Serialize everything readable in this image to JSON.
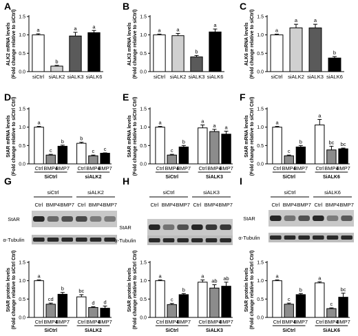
{
  "chart_data": [
    {
      "id": "A",
      "type": "bar",
      "title": "",
      "xlabel": "",
      "ylabel": [
        "ALK2 mRNA levels",
        "(Fold change relative to siCtrl)"
      ],
      "categories": [
        "siCtrl",
        "siALK2",
        "siALK3",
        "siALK6"
      ],
      "values": [
        1.0,
        0.15,
        0.97,
        1.06
      ],
      "errors": [
        0.03,
        0.02,
        0.1,
        0.06
      ],
      "sig": [
        "a",
        "b",
        "a",
        "a"
      ],
      "colors": [
        "#ffffff",
        "#d0d0d0",
        "#5a5a5a",
        "#000000"
      ],
      "ylim": [
        0,
        1.5
      ],
      "yticks": [
        "0.0",
        "0.5",
        "1.0",
        "1.5"
      ]
    },
    {
      "id": "B",
      "type": "bar",
      "title": "",
      "xlabel": "",
      "ylabel": [
        "ALK3 mRNA levels",
        "(Fold change relative to siCtrl)"
      ],
      "categories": [
        "siCtrl",
        "siALK2",
        "siALK3",
        "siALK6"
      ],
      "values": [
        1.0,
        0.98,
        0.4,
        1.08
      ],
      "errors": [
        0.02,
        0.06,
        0.04,
        0.08
      ],
      "sig": [
        "a",
        "a",
        "b",
        "a"
      ],
      "colors": [
        "#ffffff",
        "#d0d0d0",
        "#5a5a5a",
        "#000000"
      ],
      "ylim": [
        0,
        1.5
      ],
      "yticks": [
        "0.0",
        "0.5",
        "1.0",
        "1.5"
      ]
    },
    {
      "id": "C",
      "type": "bar",
      "title": "",
      "xlabel": "",
      "ylabel": [
        "ALK6 mRNA levels",
        "(Fold change relative to siCtrl)"
      ],
      "categories": [
        "siCtrl",
        "siALK2",
        "siALK3",
        "siALK6"
      ],
      "values": [
        1.0,
        1.19,
        1.19,
        0.37
      ],
      "errors": [
        0.02,
        0.1,
        0.1,
        0.04
      ],
      "sig": [
        "a",
        "a",
        "a",
        "b"
      ],
      "colors": [
        "#ffffff",
        "#d0d0d0",
        "#5a5a5a",
        "#000000"
      ],
      "ylim": [
        0,
        1.5
      ],
      "yticks": [
        "0.0",
        "0.5",
        "1.0",
        "1.5"
      ]
    },
    {
      "id": "D",
      "type": "bar",
      "title": "",
      "xlabel": "",
      "ylabel": [
        "StAR mRNA levels",
        "(Fold change relative to siCtrl Ctrl)"
      ],
      "categories": [
        "Ctrl",
        "BMP4",
        "BMP7",
        "Ctrl",
        "BMP4",
        "BMP7"
      ],
      "values": [
        1.0,
        0.24,
        0.48,
        0.56,
        0.22,
        0.29
      ],
      "errors": [
        0.02,
        0.02,
        0.03,
        0.03,
        0.02,
        0.01
      ],
      "sig": [
        "a",
        "c",
        "b",
        "b",
        "c",
        "c"
      ],
      "colors": [
        "#ffffff",
        "#8c8c8c",
        "#000000",
        "#ffffff",
        "#8c8c8c",
        "#000000"
      ],
      "groups": [
        "SiCtrl",
        "siALK2"
      ],
      "ylim": [
        0,
        1.5
      ],
      "yticks": [
        "0.0",
        "0.5",
        "1.0",
        "1.5"
      ]
    },
    {
      "id": "E",
      "type": "bar",
      "title": "",
      "xlabel": "",
      "ylabel": [
        "StAR mRNA levels",
        "(Fold change relative to siCtrl Ctrl)"
      ],
      "categories": [
        "Ctrl",
        "BMP4",
        "BMP7",
        "Ctrl",
        "BMP4",
        "BMP7"
      ],
      "values": [
        1.0,
        0.24,
        0.46,
        0.98,
        0.88,
        0.81
      ],
      "errors": [
        0.02,
        0.02,
        0.04,
        0.08,
        0.06,
        0.08
      ],
      "sig": [
        "a",
        "c",
        "b",
        "a",
        "a",
        "a"
      ],
      "colors": [
        "#ffffff",
        "#8c8c8c",
        "#000000",
        "#ffffff",
        "#8c8c8c",
        "#000000"
      ],
      "groups": [
        "SiCtrl",
        "SiALK3"
      ],
      "ylim": [
        0,
        1.5
      ],
      "yticks": [
        "0.0",
        "0.5",
        "1.0",
        "1.5"
      ]
    },
    {
      "id": "F",
      "type": "bar",
      "title": "",
      "xlabel": "",
      "ylabel": [
        "StAR mRNA levels",
        "(Fold change relative to siCtrl Ctrl)"
      ],
      "categories": [
        "Ctrl",
        "BMP4",
        "BMP7",
        "Ctrl",
        "BMP4",
        "BMP7"
      ],
      "values": [
        1.0,
        0.22,
        0.46,
        1.06,
        0.38,
        0.41
      ],
      "errors": [
        0.02,
        0.02,
        0.04,
        0.15,
        0.1,
        0.02
      ],
      "sig": [
        "a",
        "c",
        "b",
        "a",
        "bc",
        "bc"
      ],
      "colors": [
        "#ffffff",
        "#8c8c8c",
        "#000000",
        "#ffffff",
        "#8c8c8c",
        "#000000"
      ],
      "groups": [
        "SiCtrl",
        "SiALK6"
      ],
      "ylim": [
        0,
        1.5
      ],
      "yticks": [
        "0.0",
        "0.5",
        "1.0",
        "1.5"
      ]
    },
    {
      "id": "G",
      "type": "bar",
      "title": "",
      "xlabel": "",
      "ylabel": [
        "StAR protein levels",
        "(Fold change relative to siCtrl Ctrl)"
      ],
      "categories": [
        "Ctrl",
        "BMP4",
        "BMP7",
        "Ctrl",
        "BMP4",
        "BMP7"
      ],
      "values": [
        1.0,
        0.36,
        0.63,
        0.56,
        0.27,
        0.25
      ],
      "errors": [
        0.02,
        0.03,
        0.05,
        0.06,
        0.02,
        0.06
      ],
      "sig": [
        "a",
        "cd",
        "b",
        "bc",
        "d",
        "d"
      ],
      "colors": [
        "#ffffff",
        "#8c8c8c",
        "#000000",
        "#ffffff",
        "#8c8c8c",
        "#000000"
      ],
      "groups": [
        "SiCtrl",
        "SiALK2"
      ],
      "ylim": [
        0,
        1.5
      ],
      "yticks": [
        "0.0",
        "0.5",
        "1.0",
        "1.5"
      ]
    },
    {
      "id": "H",
      "type": "bar",
      "title": "",
      "xlabel": "",
      "ylabel": [
        "StAR protein levels",
        "(Fold change relative to siCtrl Ctrl)"
      ],
      "categories": [
        "Ctrl",
        "BMP4",
        "BMP7",
        "Ctrl",
        "BMP4",
        "BMP7"
      ],
      "values": [
        1.0,
        0.35,
        0.62,
        0.96,
        0.8,
        0.85
      ],
      "errors": [
        0.02,
        0.03,
        0.03,
        0.06,
        0.09,
        0.11
      ],
      "sig": [
        "a",
        "c",
        "b",
        "a",
        "ab",
        "ab"
      ],
      "colors": [
        "#ffffff",
        "#8c8c8c",
        "#000000",
        "#ffffff",
        "#8c8c8c",
        "#000000"
      ],
      "groups": [
        "SiCtrl",
        "SiALK3"
      ],
      "ylim": [
        0,
        1.5
      ],
      "yticks": [
        "0.0",
        "0.5",
        "1.0",
        "1.5"
      ]
    },
    {
      "id": "I",
      "type": "bar",
      "title": "",
      "xlabel": "",
      "ylabel": [
        "StAR protein levels",
        "(Fold change relative to siCtrl Ctrl)"
      ],
      "categories": [
        "Ctrl",
        "BMP4",
        "BMP7",
        "Ctrl",
        "BMP4",
        "BMP7"
      ],
      "values": [
        1.0,
        0.36,
        0.62,
        0.94,
        0.24,
        0.55
      ],
      "errors": [
        0.02,
        0.03,
        0.03,
        0.03,
        0.02,
        0.11
      ],
      "sig": [
        "a",
        "c",
        "b",
        "a",
        "c",
        "bc"
      ],
      "colors": [
        "#ffffff",
        "#8c8c8c",
        "#000000",
        "#ffffff",
        "#8c8c8c",
        "#000000"
      ],
      "groups": [
        "SiCtrl",
        "SiALK6"
      ],
      "ylim": [
        0,
        1.5
      ],
      "yticks": [
        "0.0",
        "0.5",
        "1.0",
        "1.5"
      ]
    }
  ],
  "blots": [
    {
      "id": "G",
      "groups": [
        "siCtrl",
        "siALK2"
      ],
      "lanes": [
        "Ctrl",
        "BMP4",
        "BMP7",
        "Ctrl",
        "BMP4",
        "BMP7"
      ],
      "rows": [
        "StAR",
        "α-Tubulin"
      ],
      "star_intensity": [
        0.95,
        0.55,
        0.7,
        0.75,
        0.45,
        0.45
      ]
    },
    {
      "id": "H",
      "groups": [
        "siCtrl",
        "siALK3"
      ],
      "lanes": [
        "Ctrl",
        "BMP4",
        "BMP7",
        "Ctrl",
        "BMP4",
        "BMP7"
      ],
      "rows": [
        "StAR",
        "α-Tubulin"
      ],
      "star_intensity": [
        0.95,
        0.5,
        0.7,
        0.95,
        0.85,
        0.85
      ]
    },
    {
      "id": "I",
      "groups": [
        "siCtrl",
        "siALK6"
      ],
      "lanes": [
        "Ctrl",
        "BMP4",
        "BMP7",
        "Ctrl",
        "BMP4",
        "BMP7"
      ],
      "rows": [
        "StAR",
        "α-Tubulin"
      ],
      "star_intensity": [
        0.95,
        0.5,
        0.7,
        0.95,
        0.45,
        0.65
      ]
    }
  ]
}
